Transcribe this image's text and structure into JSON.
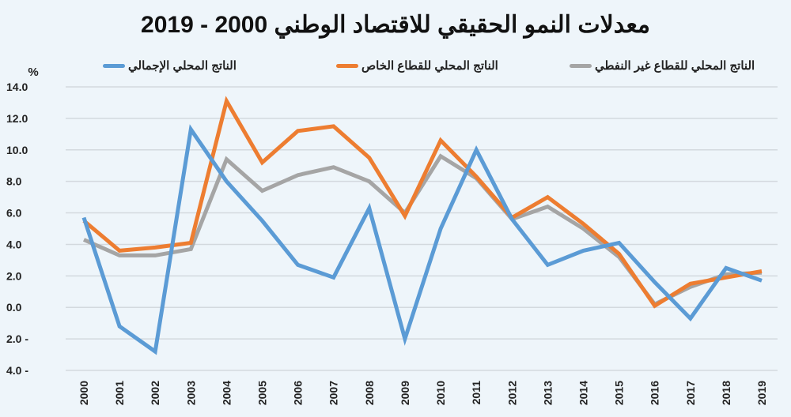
{
  "chart_data": {
    "type": "line",
    "title": "معدلات النمو الحقيقي للاقتصاد الوطني 2000 - 2019",
    "ylabel": "%",
    "ylim": [
      -4,
      14
    ],
    "yticks": [
      14,
      12,
      10,
      8,
      6,
      4,
      2,
      0,
      -2,
      -4
    ],
    "ytick_labels": [
      "14.0",
      "12.0",
      "10.0",
      "8.0",
      "6.0",
      "4.0",
      "2.0",
      "0.0",
      "2.0 -",
      "4.0 -"
    ],
    "grid": true,
    "legend_position": "top",
    "categories": [
      "2000",
      "2001",
      "2002",
      "2003",
      "2004",
      "2005",
      "2006",
      "2007",
      "2008",
      "2009",
      "2010",
      "2011",
      "2012",
      "2013",
      "2014",
      "2015",
      "2016",
      "2017",
      "2018",
      "2019"
    ],
    "series": [
      {
        "name": "الناتج المحلي الإجمالي",
        "color": "#5b9bd5",
        "values": [
          5.7,
          -1.2,
          -2.8,
          11.3,
          8.0,
          5.5,
          2.7,
          1.9,
          6.3,
          -2.0,
          5.0,
          10.0,
          5.6,
          2.7,
          3.6,
          4.1,
          1.6,
          -0.7,
          2.5,
          1.7
        ]
      },
      {
        "name": "الناتج المحلي للقطاع الخاص",
        "color": "#ed7d31",
        "values": [
          5.5,
          3.6,
          3.8,
          4.1,
          13.1,
          9.2,
          11.2,
          11.5,
          9.5,
          5.8,
          10.6,
          8.3,
          5.7,
          7.0,
          5.3,
          3.4,
          0.1,
          1.5,
          1.9,
          2.3
        ]
      },
      {
        "name": "الناتج المحلي للقطاع غير النفطي",
        "color": "#a5a5a5",
        "values": [
          4.3,
          3.3,
          3.3,
          3.7,
          9.4,
          7.4,
          8.4,
          8.9,
          8.0,
          6.0,
          9.6,
          8.2,
          5.6,
          6.4,
          5.0,
          3.2,
          0.2,
          1.3,
          2.1,
          2.2
        ]
      }
    ]
  }
}
